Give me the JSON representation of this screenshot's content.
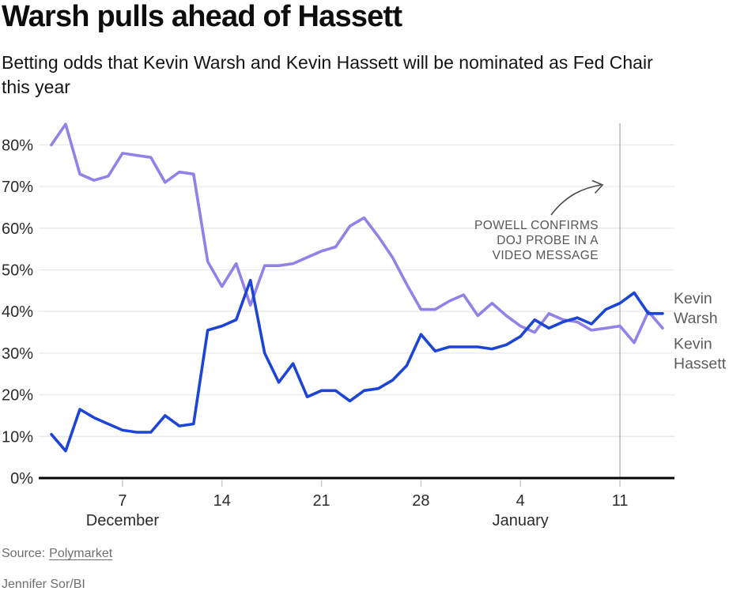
{
  "header": {
    "title": "Warsh pulls ahead of Hassett",
    "subtitle": "Betting odds that Kevin Warsh and Kevin Hassett will be nominated as Fed Chair this year"
  },
  "chart_data": {
    "type": "line",
    "x": [
      "Dec 2",
      "Dec 3",
      "Dec 4",
      "Dec 5",
      "Dec 6",
      "Dec 7",
      "Dec 8",
      "Dec 9",
      "Dec 10",
      "Dec 11",
      "Dec 12",
      "Dec 13",
      "Dec 14",
      "Dec 15",
      "Dec 16",
      "Dec 17",
      "Dec 18",
      "Dec 19",
      "Dec 20",
      "Dec 21",
      "Dec 22",
      "Dec 23",
      "Dec 24",
      "Dec 25",
      "Dec 26",
      "Dec 27",
      "Dec 28",
      "Dec 29",
      "Dec 30",
      "Dec 31",
      "Jan 1",
      "Jan 2",
      "Jan 3",
      "Jan 4",
      "Jan 5",
      "Jan 6",
      "Jan 7",
      "Jan 8",
      "Jan 9",
      "Jan 10",
      "Jan 11",
      "Jan 12",
      "Jan 13",
      "Jan 14"
    ],
    "series": [
      {
        "name": "Kevin Hassett",
        "color": "#9181e8",
        "values": [
          80,
          85,
          73,
          71.5,
          72.5,
          78,
          77.5,
          77,
          71,
          73.5,
          73,
          52,
          46,
          51.5,
          41.5,
          51,
          51,
          51.5,
          53,
          54.5,
          55.5,
          60.5,
          62.5,
          58,
          53,
          46.5,
          40.5,
          40.5,
          42.5,
          44,
          39,
          42,
          39,
          36.5,
          35,
          39.5,
          38,
          37.5,
          35.5,
          36,
          36.5,
          32.5,
          40,
          36
        ]
      },
      {
        "name": "Kevin Warsh",
        "color": "#1c45d6",
        "values": [
          10.5,
          6.5,
          16.5,
          14.5,
          13,
          11.5,
          11,
          11,
          15,
          12.5,
          13,
          35.5,
          36.5,
          38,
          47.5,
          30,
          23,
          27.5,
          19.5,
          21,
          21,
          18.5,
          21,
          21.5,
          23.5,
          27,
          34.5,
          30.5,
          31.5,
          31.5,
          31.5,
          31,
          32,
          34,
          38,
          36,
          37.5,
          38.5,
          37,
          40.5,
          42,
          44.5,
          39.5,
          39.5
        ]
      }
    ],
    "yticks": [
      0,
      10,
      20,
      30,
      40,
      50,
      60,
      70,
      80
    ],
    "ytick_suffix": "%",
    "ylim": [
      0,
      85
    ],
    "grid": true,
    "xticks": [
      {
        "index": 5,
        "label": "7"
      },
      {
        "index": 12,
        "label": "14"
      },
      {
        "index": 19,
        "label": "21"
      },
      {
        "index": 26,
        "label": "28"
      },
      {
        "index": 33,
        "label": "4"
      },
      {
        "index": 40,
        "label": "11"
      }
    ],
    "month_labels": [
      {
        "index": 5,
        "label": "December"
      },
      {
        "index": 33,
        "label": "January"
      }
    ],
    "annotation": {
      "lines": [
        "POWELL CONFIRMS",
        "DOJ PROBE IN A",
        "VIDEO MESSAGE"
      ],
      "vline_index": 40
    },
    "end_labels": [
      {
        "series": "Kevin Warsh",
        "lines": [
          "Kevin",
          "Warsh"
        ]
      },
      {
        "series": "Kevin Hassett",
        "lines": [
          "Kevin",
          "Hassett"
        ]
      }
    ]
  },
  "footer": {
    "source_prefix": "Source:",
    "source_link": "Polymarket",
    "credit": "Jennifer Sor/BI"
  },
  "colors": {
    "warsh_line": "#1c45d6",
    "hassett_line": "#9181e8",
    "gridline": "#e8e8e8",
    "axis_text": "#2b2b2b",
    "baseline": "#000000",
    "tick": "#c9c9c9",
    "event_vline": "#a9a9a9",
    "annotation_text": "#575757",
    "arrow": "#4a4a4a",
    "series_label_text": "#5c5c5c",
    "footer_text": "#6e6e6e"
  }
}
